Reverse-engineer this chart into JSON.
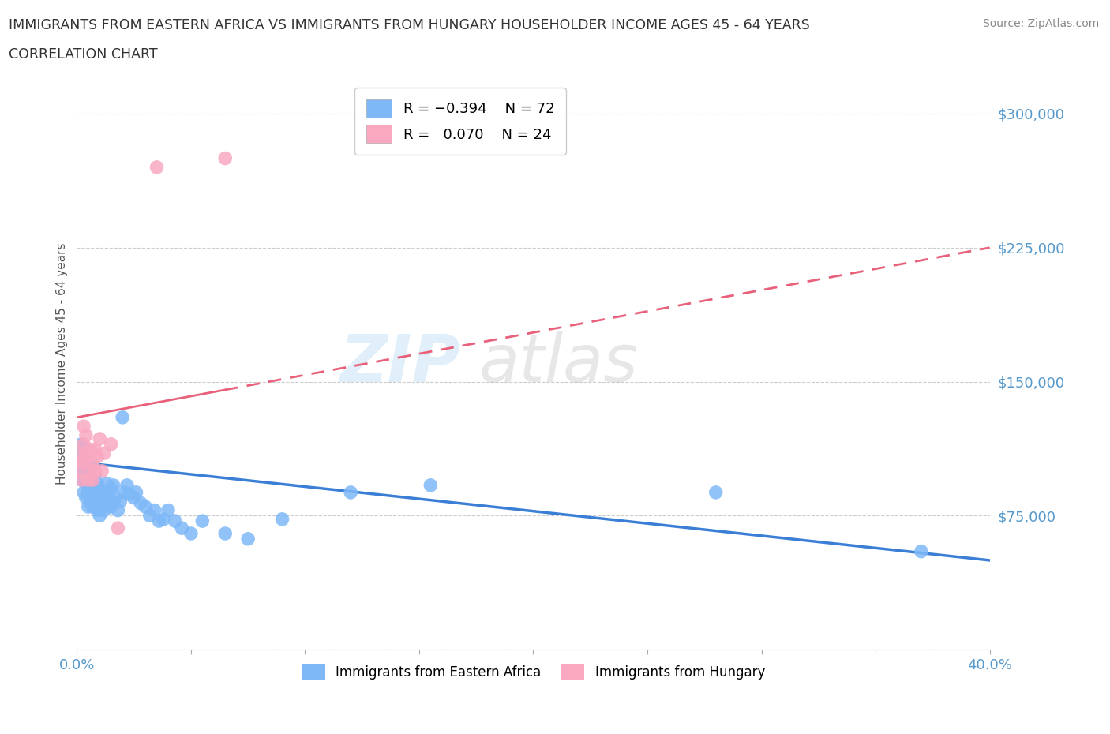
{
  "title_line1": "IMMIGRANTS FROM EASTERN AFRICA VS IMMIGRANTS FROM HUNGARY HOUSEHOLDER INCOME AGES 45 - 64 YEARS",
  "title_line2": "CORRELATION CHART",
  "source_text": "Source: ZipAtlas.com",
  "ylabel": "Householder Income Ages 45 - 64 years",
  "xlim": [
    0.0,
    0.4
  ],
  "ylim": [
    0,
    320000
  ],
  "yticks": [
    0,
    75000,
    150000,
    225000,
    300000
  ],
  "ytick_labels": [
    "",
    "$75,000",
    "$150,000",
    "$225,000",
    "$300,000"
  ],
  "color_eastern_africa": "#7EB8F7",
  "color_hungary": "#F9A8C0",
  "color_trend_eastern": "#3A7FD5",
  "color_trend_hungary": "#E8607A",
  "trend_ea_x0": 0.0,
  "trend_ea_y0": 105000,
  "trend_ea_x1": 0.4,
  "trend_ea_y1": 50000,
  "trend_hu_x0": 0.0,
  "trend_hu_y0": 130000,
  "trend_hu_x1": 0.4,
  "trend_hu_y1": 225000,
  "trend_hu_solid_x0": 0.0,
  "trend_hu_solid_x1": 0.065,
  "eastern_africa_x": [
    0.001,
    0.001,
    0.002,
    0.002,
    0.002,
    0.003,
    0.003,
    0.003,
    0.003,
    0.004,
    0.004,
    0.004,
    0.004,
    0.005,
    0.005,
    0.005,
    0.005,
    0.005,
    0.006,
    0.006,
    0.006,
    0.007,
    0.007,
    0.007,
    0.007,
    0.008,
    0.008,
    0.008,
    0.009,
    0.009,
    0.009,
    0.01,
    0.01,
    0.01,
    0.011,
    0.011,
    0.012,
    0.012,
    0.013,
    0.013,
    0.014,
    0.015,
    0.015,
    0.016,
    0.016,
    0.017,
    0.018,
    0.019,
    0.02,
    0.021,
    0.022,
    0.023,
    0.025,
    0.026,
    0.028,
    0.03,
    0.032,
    0.034,
    0.036,
    0.038,
    0.04,
    0.043,
    0.046,
    0.05,
    0.055,
    0.065,
    0.075,
    0.09,
    0.12,
    0.155,
    0.28,
    0.37
  ],
  "eastern_africa_y": [
    100000,
    110000,
    95000,
    105000,
    115000,
    88000,
    95000,
    102000,
    112000,
    85000,
    93000,
    100000,
    108000,
    80000,
    88000,
    95000,
    102000,
    110000,
    82000,
    90000,
    98000,
    80000,
    87000,
    95000,
    103000,
    82000,
    90000,
    98000,
    78000,
    85000,
    93000,
    75000,
    82000,
    90000,
    80000,
    88000,
    78000,
    86000,
    85000,
    93000,
    88000,
    80000,
    90000,
    82000,
    92000,
    85000,
    78000,
    83000,
    130000,
    88000,
    92000,
    87000,
    85000,
    88000,
    82000,
    80000,
    75000,
    78000,
    72000,
    73000,
    78000,
    72000,
    68000,
    65000,
    72000,
    65000,
    62000,
    73000,
    88000,
    92000,
    88000,
    55000
  ],
  "hungary_x": [
    0.001,
    0.001,
    0.002,
    0.002,
    0.003,
    0.003,
    0.003,
    0.004,
    0.004,
    0.005,
    0.005,
    0.006,
    0.006,
    0.007,
    0.007,
    0.008,
    0.008,
    0.009,
    0.01,
    0.011,
    0.012,
    0.015,
    0.018,
    0.035,
    0.065
  ],
  "hungary_y": [
    100000,
    110000,
    95000,
    105000,
    105000,
    115000,
    125000,
    110000,
    120000,
    95000,
    108000,
    100000,
    112000,
    95000,
    105000,
    100000,
    112000,
    108000,
    118000,
    100000,
    110000,
    115000,
    68000,
    270000,
    275000
  ]
}
